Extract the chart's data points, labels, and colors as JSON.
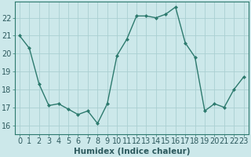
{
  "x": [
    0,
    1,
    2,
    3,
    4,
    5,
    6,
    7,
    8,
    9,
    10,
    11,
    12,
    13,
    14,
    15,
    16,
    17,
    18,
    19,
    20,
    21,
    22,
    23
  ],
  "y": [
    21.0,
    20.3,
    18.3,
    17.1,
    17.2,
    16.9,
    16.6,
    16.8,
    16.1,
    17.2,
    19.9,
    20.8,
    22.1,
    22.1,
    22.0,
    22.2,
    22.6,
    20.6,
    19.8,
    16.8,
    17.2,
    17.0,
    18.0,
    18.7
  ],
  "line_color": "#2d7a6e",
  "marker": "D",
  "marker_size": 2.0,
  "bg_color": "#cce8ea",
  "grid_color": "#aacfd2",
  "xlabel": "Humidex (Indice chaleur)",
  "xlim": [
    -0.5,
    23.5
  ],
  "ylim": [
    15.5,
    22.9
  ],
  "yticks": [
    16,
    17,
    18,
    19,
    20,
    21,
    22
  ],
  "xticks": [
    0,
    1,
    2,
    3,
    4,
    5,
    6,
    7,
    8,
    9,
    10,
    11,
    12,
    13,
    14,
    15,
    16,
    17,
    18,
    19,
    20,
    21,
    22,
    23
  ],
  "xlabel_fontsize": 7.5,
  "tick_fontsize": 7.0,
  "linewidth": 1.0
}
